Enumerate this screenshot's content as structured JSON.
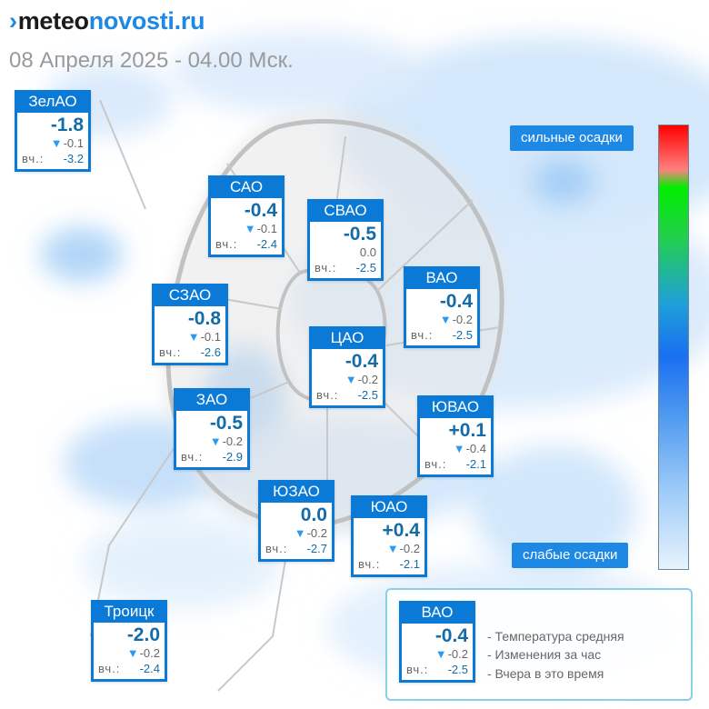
{
  "brand": {
    "mark": "›",
    "part1": "meteo",
    "part2": "novosti.ru"
  },
  "date_line": "08 Апреля 2025 - 04.00 Мск.",
  "yesterday_label": "вч.:",
  "colors": {
    "accent": "#0a7ad6",
    "temp_text": "#136ca8",
    "arrow": "#2a9bf0"
  },
  "icons": {
    "change_arrow": "down-triangle-icon"
  },
  "districts": [
    {
      "id": "zelao",
      "name": "ЗелАО",
      "temp": "-1.8",
      "change": "-0.1",
      "yesterday": "-3.2"
    },
    {
      "id": "sao",
      "name": "САО",
      "temp": "-0.4",
      "change": "-0.1",
      "yesterday": "-2.4"
    },
    {
      "id": "svao",
      "name": "СВАО",
      "temp": "-0.5",
      "change": "0.0",
      "yesterday": "-2.5"
    },
    {
      "id": "vao",
      "name": "ВАО",
      "temp": "-0.4",
      "change": "-0.2",
      "yesterday": "-2.5"
    },
    {
      "id": "szao",
      "name": "СЗАО",
      "temp": "-0.8",
      "change": "-0.1",
      "yesterday": "-2.6"
    },
    {
      "id": "cao",
      "name": "ЦАО",
      "temp": "-0.4",
      "change": "-0.2",
      "yesterday": "-2.5"
    },
    {
      "id": "zao",
      "name": "ЗАО",
      "temp": "-0.5",
      "change": "-0.2",
      "yesterday": "-2.9"
    },
    {
      "id": "yuvao",
      "name": "ЮВАО",
      "temp": "+0.1",
      "change": "-0.4",
      "yesterday": "-2.1"
    },
    {
      "id": "yuzao",
      "name": "ЮЗАО",
      "temp": "0.0",
      "change": "-0.2",
      "yesterday": "-2.7"
    },
    {
      "id": "yuao",
      "name": "ЮАО",
      "temp": "+0.4",
      "change": "-0.2",
      "yesterday": "-2.1"
    },
    {
      "id": "troick",
      "name": "Троицк",
      "temp": "-2.0",
      "change": "-0.2",
      "yesterday": "-2.4"
    }
  ],
  "precip_scale": {
    "high_label": "сильные осадки",
    "low_label": "слабые осадки"
  },
  "legend": {
    "sample": {
      "name": "ВАО",
      "temp": "-0.4",
      "change": "-0.2",
      "yesterday": "-2.5"
    },
    "lines": [
      "- Температура средняя",
      "- Изменения за час",
      "- Вчера в это время"
    ]
  }
}
